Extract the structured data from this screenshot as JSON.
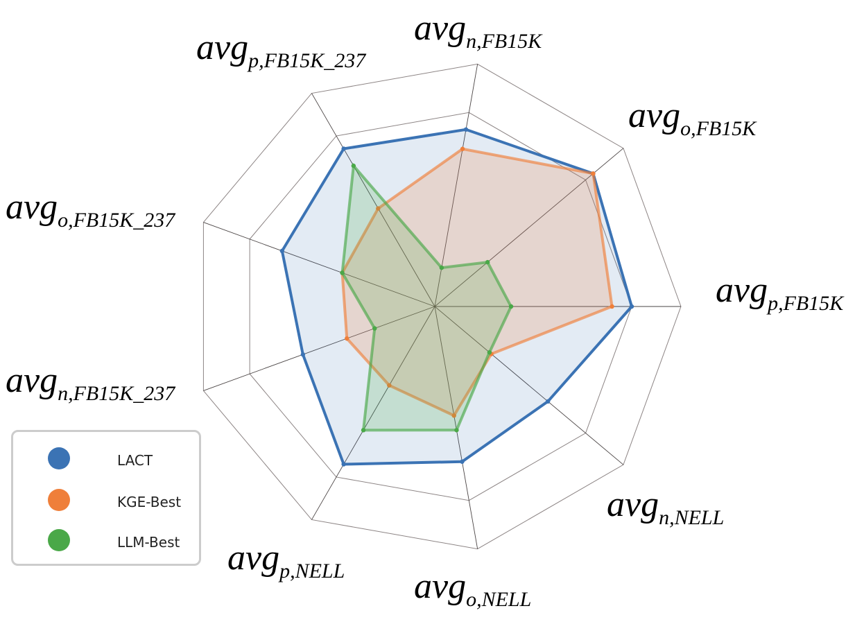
{
  "chart_data": {
    "type": "radar",
    "axes": [
      {
        "base": "avg",
        "sub": "p,FB15K"
      },
      {
        "base": "avg",
        "sub": "o,FB15K"
      },
      {
        "base": "avg",
        "sub": "n,FB15K"
      },
      {
        "base": "avg",
        "sub": "p,FB15K_237"
      },
      {
        "base": "avg",
        "sub": "o,FB15K_237"
      },
      {
        "base": "avg",
        "sub": "n,FB15K_237"
      },
      {
        "base": "avg",
        "sub": "p,NELL"
      },
      {
        "base": "avg",
        "sub": "o,NELL"
      },
      {
        "base": "avg",
        "sub": "n,NELL"
      }
    ],
    "rmax": 1.0,
    "rings": [
      0.8,
      1.0
    ],
    "series": [
      {
        "name": "LACT",
        "color": "#3b73b4",
        "values": [
          0.8,
          0.84,
          0.73,
          0.74,
          0.66,
          0.57,
          0.74,
          0.64,
          0.6
        ]
      },
      {
        "name": "KGE-Best",
        "color": "#ef7f3a",
        "values": [
          0.72,
          0.84,
          0.65,
          0.46,
          0.4,
          0.38,
          0.37,
          0.45,
          0.3
        ]
      },
      {
        "name": "LLM-Best",
        "color": "#4aa848",
        "values": [
          0.31,
          0.28,
          0.16,
          0.66,
          0.4,
          0.26,
          0.58,
          0.51,
          0.29
        ]
      }
    ],
    "legend_position": "lower-left",
    "grid": true
  },
  "legend": {
    "items": [
      {
        "label": "LACT",
        "color": "#3b73b4"
      },
      {
        "label": "KGE-Best",
        "color": "#ef7f3a"
      },
      {
        "label": "LLM-Best",
        "color": "#4aa848"
      }
    ]
  }
}
